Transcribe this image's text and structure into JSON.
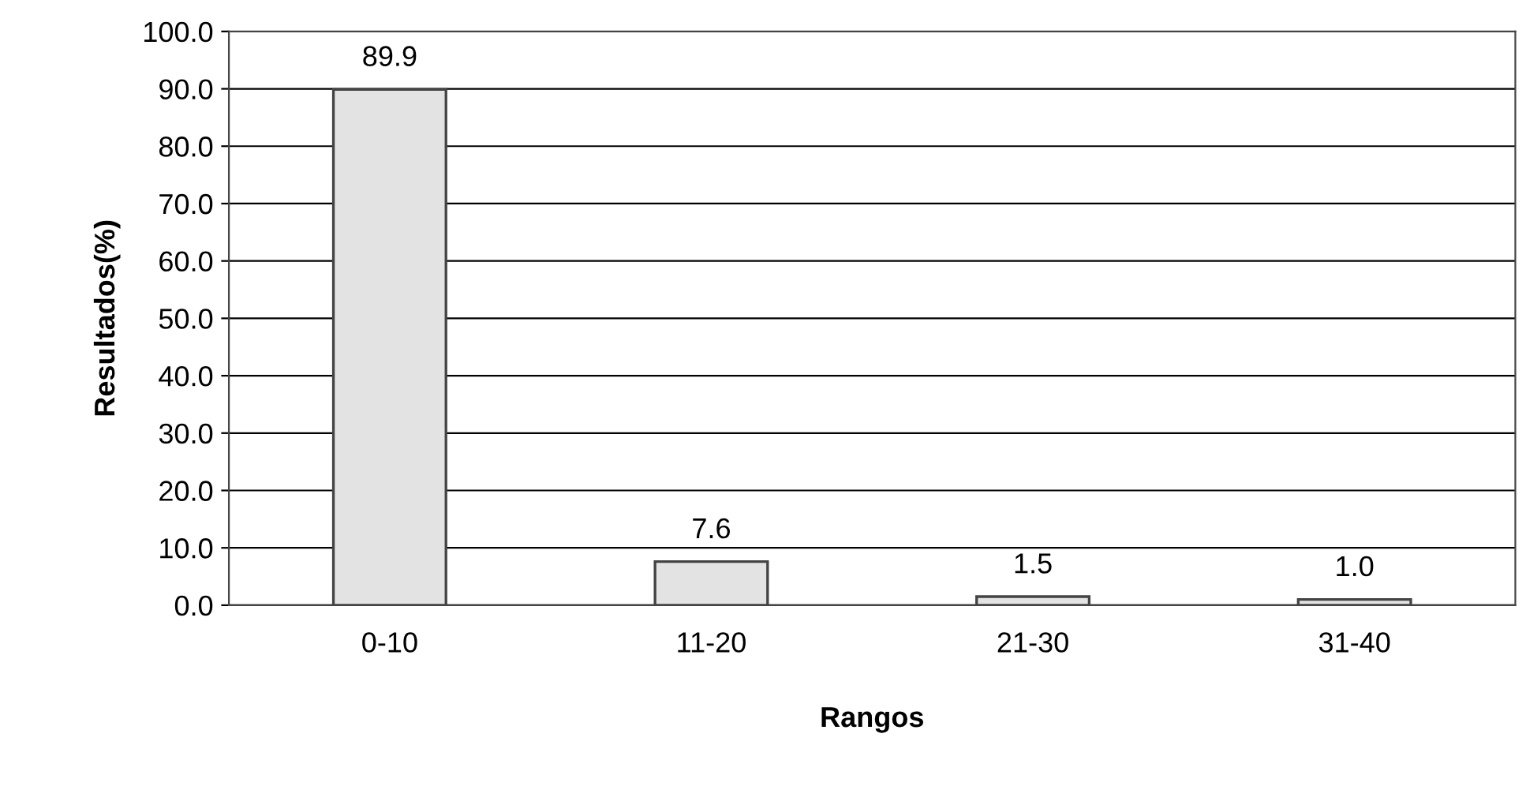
{
  "chart_data": {
    "type": "bar",
    "xlabel": "Rangos",
    "ylabel": "Resultados(%)",
    "categories": [
      "0-10",
      "11-20",
      "21-30",
      "31-40"
    ],
    "values": [
      89.9,
      7.6,
      1.5,
      1.0
    ],
    "color": "#e3e3e3",
    "ylim": [
      0,
      100
    ],
    "yticks": [
      {
        "value": 0,
        "label": "0.0"
      },
      {
        "value": 10,
        "label": "10.0"
      },
      {
        "value": 20,
        "label": "20.0"
      },
      {
        "value": 30,
        "label": "30.0"
      },
      {
        "value": 40,
        "label": "40.0"
      },
      {
        "value": 50,
        "label": "50.0"
      },
      {
        "value": 60,
        "label": "60.0"
      },
      {
        "value": 70,
        "label": "70.0"
      },
      {
        "value": 80,
        "label": "80.0"
      },
      {
        "value": 90,
        "label": "90.0"
      },
      {
        "value": 100,
        "label": "100.0"
      }
    ],
    "grid": "y",
    "value_labels": [
      "89.9",
      "7.6",
      "1.5",
      "1.0"
    ]
  }
}
